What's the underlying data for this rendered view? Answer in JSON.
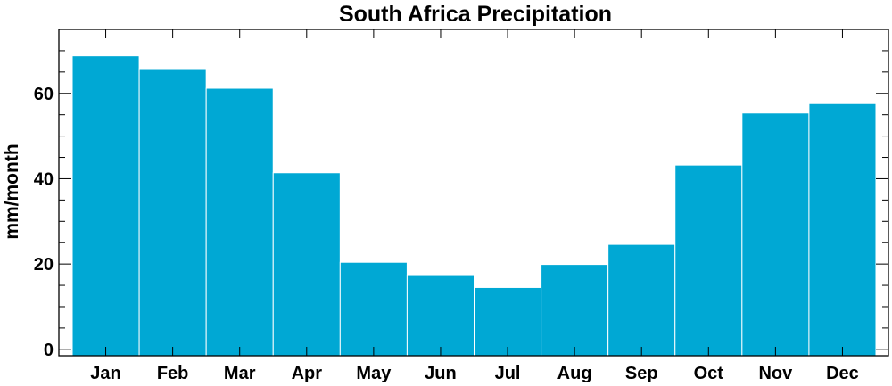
{
  "chart_data": {
    "type": "bar",
    "title": "South Africa Precipitation",
    "xlabel": "",
    "ylabel": "mm/month",
    "categories": [
      "Jan",
      "Feb",
      "Mar",
      "Apr",
      "May",
      "Jun",
      "Jul",
      "Aug",
      "Sep",
      "Oct",
      "Nov",
      "Dec"
    ],
    "values": [
      68.8,
      65.8,
      61.2,
      41.4,
      20.4,
      17.3,
      14.5,
      19.9,
      24.6,
      43.2,
      55.4,
      57.6
    ],
    "ylim": [
      -1.5,
      75
    ],
    "yticks": [
      0,
      20,
      40,
      60
    ],
    "bar_color": "#00a8d4",
    "grid": false,
    "legend": "none"
  }
}
